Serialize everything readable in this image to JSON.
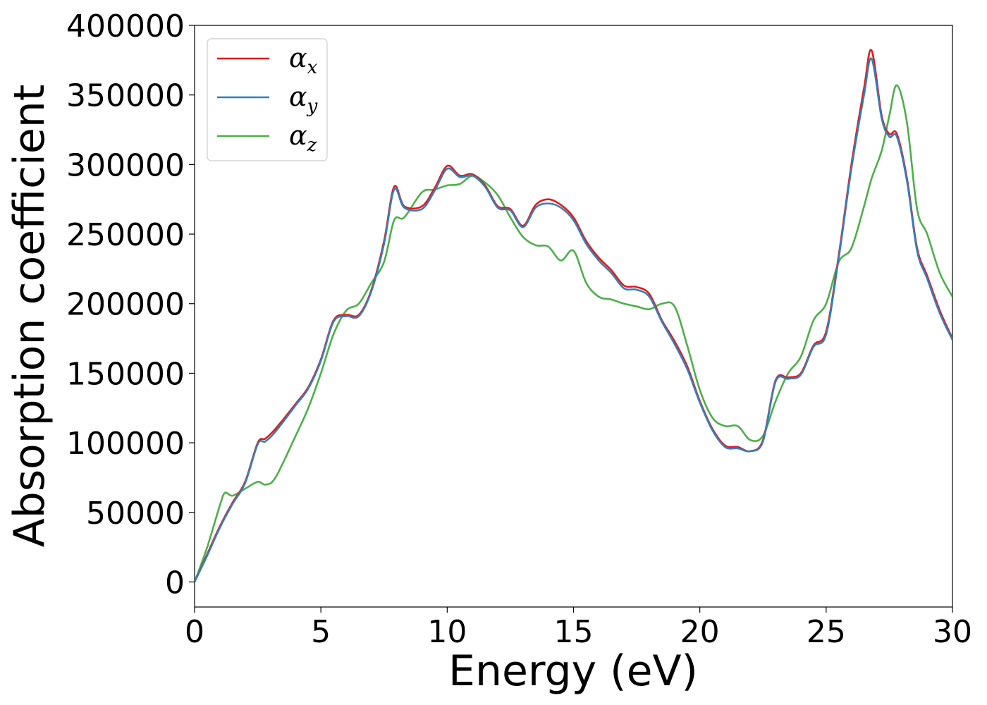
{
  "chart_data": {
    "type": "line",
    "xlabel": "Energy (eV)",
    "ylabel": "Absorption coefficient",
    "xlim": [
      0,
      30
    ],
    "ylim": [
      -18000,
      400000
    ],
    "xticks": [
      0,
      5,
      10,
      15,
      20,
      25,
      30
    ],
    "yticks": [
      0,
      50000,
      100000,
      150000,
      200000,
      250000,
      300000,
      350000,
      400000
    ],
    "grid": false,
    "legend": "top-left",
    "series": [
      {
        "name": "αx",
        "base": "α",
        "sub": "x",
        "color": "#e41a1c",
        "x": [
          0,
          0.5,
          1,
          1.5,
          2,
          2.5,
          2.8,
          3.2,
          4,
          4.5,
          5,
          5.5,
          6,
          6.5,
          7,
          7.5,
          7.9,
          8.3,
          9,
          9.5,
          10,
          10.5,
          11,
          11.5,
          12,
          12.5,
          13,
          13.5,
          14,
          14.5,
          15,
          15.5,
          16,
          16.5,
          17,
          17.5,
          18,
          18.5,
          19,
          19.5,
          20,
          20.5,
          21,
          21.5,
          22,
          22.5,
          23,
          23.5,
          24,
          24.5,
          25,
          25.5,
          26,
          26.5,
          26.8,
          27.2,
          27.5,
          27.8,
          28.2,
          28.6,
          29,
          29.5,
          30
        ],
        "y": [
          0,
          20000,
          40000,
          57000,
          72000,
          100000,
          103000,
          110000,
          128000,
          140000,
          160000,
          188000,
          192000,
          192000,
          210000,
          245000,
          284000,
          270000,
          270000,
          283000,
          299000,
          292000,
          293000,
          285000,
          270000,
          268000,
          256000,
          271000,
          275000,
          271000,
          262000,
          245000,
          233000,
          224000,
          213000,
          212000,
          207000,
          188000,
          173000,
          155000,
          130000,
          110000,
          98000,
          97000,
          94000,
          102000,
          145000,
          147000,
          150000,
          170000,
          180000,
          235000,
          300000,
          355000,
          382000,
          335000,
          322000,
          322000,
          290000,
          240000,
          220000,
          195000,
          175000
        ]
      },
      {
        "name": "αy",
        "base": "α",
        "sub": "y",
        "color": "#377eb8",
        "x": [
          0,
          0.5,
          1,
          1.5,
          2,
          2.5,
          2.8,
          3.2,
          4,
          4.5,
          5,
          5.5,
          6,
          6.5,
          7,
          7.5,
          7.9,
          8.3,
          9,
          9.5,
          10,
          10.5,
          11,
          11.5,
          12,
          12.5,
          13,
          13.5,
          14,
          14.5,
          15,
          15.5,
          16,
          16.5,
          17,
          17.5,
          18,
          18.5,
          19,
          19.5,
          20,
          20.5,
          21,
          21.5,
          22,
          22.5,
          23,
          23.5,
          24,
          24.5,
          25,
          25.5,
          26,
          26.5,
          26.8,
          27.2,
          27.5,
          27.8,
          28.2,
          28.6,
          29,
          29.5,
          30
        ],
        "y": [
          0,
          19000,
          39000,
          56000,
          71000,
          99000,
          101000,
          108000,
          127000,
          139000,
          159000,
          187000,
          191000,
          191000,
          209000,
          243000,
          282000,
          269000,
          268000,
          281000,
          297000,
          291000,
          292000,
          284000,
          269000,
          267000,
          255000,
          269000,
          272000,
          269000,
          260000,
          243000,
          231000,
          222000,
          211000,
          210000,
          205000,
          187000,
          171000,
          153000,
          129000,
          109000,
          97000,
          96000,
          94000,
          101000,
          144000,
          146000,
          149000,
          169000,
          178000,
          233000,
          297000,
          350000,
          376000,
          333000,
          320000,
          320000,
          288000,
          238000,
          218000,
          193000,
          174000
        ]
      },
      {
        "name": "αz",
        "base": "α",
        "sub": "z",
        "color": "#4daf4a",
        "x": [
          0,
          0.5,
          1,
          1.2,
          1.5,
          2,
          2.5,
          2.8,
          3.2,
          4,
          4.5,
          5,
          5.5,
          6,
          6.5,
          7,
          7.5,
          7.9,
          8.3,
          9,
          9.5,
          10,
          10.5,
          11,
          11.5,
          12,
          12.5,
          13,
          13.5,
          14,
          14.5,
          15,
          15.5,
          16,
          16.5,
          17,
          17.5,
          18,
          18.5,
          19,
          19.5,
          20,
          20.5,
          21,
          21.5,
          22,
          22.5,
          23,
          23.5,
          24,
          24.5,
          25,
          25.5,
          26,
          26.5,
          26.8,
          27.2,
          27.5,
          27.8,
          28.2,
          28.6,
          29,
          29.5,
          30
        ],
        "y": [
          0,
          25000,
          55000,
          64000,
          62000,
          67000,
          72000,
          70000,
          75000,
          105000,
          125000,
          150000,
          178000,
          195000,
          200000,
          215000,
          230000,
          260000,
          262000,
          280000,
          282000,
          285000,
          286000,
          292000,
          287000,
          278000,
          262000,
          248000,
          242000,
          241000,
          231000,
          238000,
          215000,
          205000,
          203000,
          200000,
          198000,
          196000,
          200000,
          198000,
          170000,
          138000,
          118000,
          112000,
          112000,
          102000,
          105000,
          130000,
          150000,
          162000,
          188000,
          200000,
          230000,
          240000,
          270000,
          290000,
          310000,
          335000,
          357000,
          330000,
          268000,
          250000,
          222000,
          205000
        ]
      }
    ]
  }
}
